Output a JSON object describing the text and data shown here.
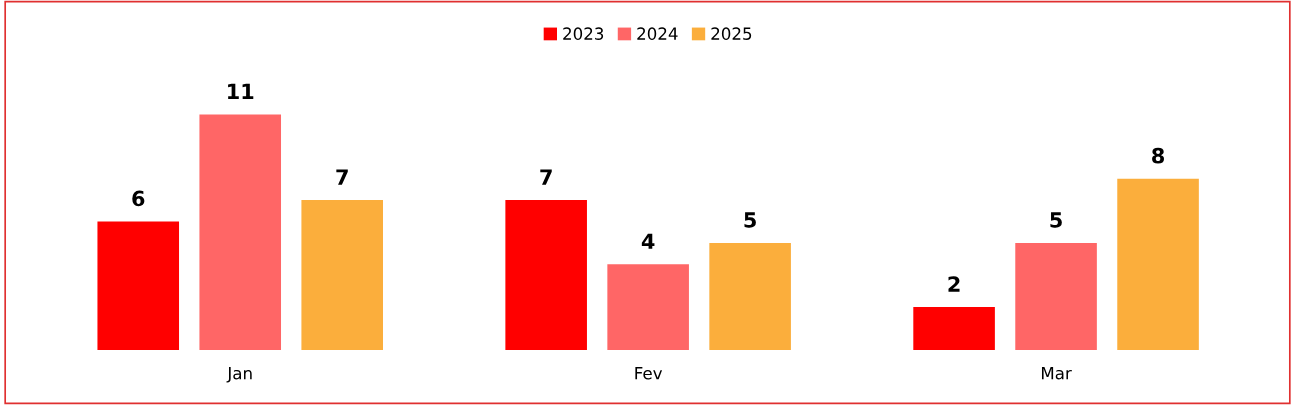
{
  "chart_data": {
    "type": "bar",
    "categories": [
      "Jan",
      "Fev",
      "Mar"
    ],
    "series": [
      {
        "name": "2023",
        "color": "#ff0000",
        "values": [
          6,
          7,
          2
        ]
      },
      {
        "name": "2024",
        "color": "#ff6666",
        "values": [
          11,
          4,
          5
        ]
      },
      {
        "name": "2025",
        "color": "#fbae3c",
        "values": [
          7,
          5,
          8
        ]
      }
    ],
    "tick_labels": "x",
    "data_labels": true,
    "legend": "top",
    "grid": false
  }
}
